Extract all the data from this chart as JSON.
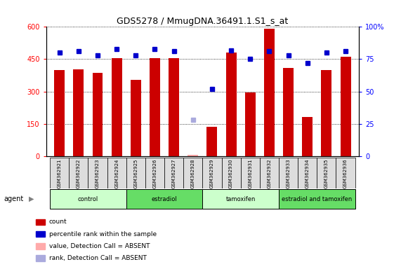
{
  "title": "GDS5278 / MmugDNA.36491.1.S1_s_at",
  "samples": [
    "GSM362921",
    "GSM362922",
    "GSM362923",
    "GSM362924",
    "GSM362925",
    "GSM362926",
    "GSM362927",
    "GSM362928",
    "GSM362929",
    "GSM362930",
    "GSM362931",
    "GSM362932",
    "GSM362933",
    "GSM362934",
    "GSM362935",
    "GSM362936"
  ],
  "counts": [
    400,
    402,
    385,
    455,
    355,
    455,
    455,
    5,
    135,
    480,
    295,
    590,
    410,
    180,
    400,
    460
  ],
  "count_absent": [
    false,
    false,
    false,
    false,
    false,
    false,
    false,
    true,
    false,
    false,
    false,
    false,
    false,
    false,
    false,
    false
  ],
  "percentile_ranks": [
    80,
    81,
    78,
    83,
    78,
    83,
    81,
    28,
    52,
    82,
    75,
    81,
    78,
    72,
    80,
    81
  ],
  "rank_absent": [
    false,
    false,
    false,
    false,
    false,
    false,
    false,
    true,
    false,
    false,
    false,
    false,
    false,
    false,
    false,
    false
  ],
  "groups": [
    {
      "label": "control",
      "start": 0,
      "end": 4,
      "color": "#ccffcc"
    },
    {
      "label": "estradiol",
      "start": 4,
      "end": 8,
      "color": "#66dd66"
    },
    {
      "label": "tamoxifen",
      "start": 8,
      "end": 12,
      "color": "#ccffcc"
    },
    {
      "label": "estradiol and tamoxifen",
      "start": 12,
      "end": 16,
      "color": "#66dd66"
    }
  ],
  "ylim_left": [
    0,
    600
  ],
  "ylim_right": [
    0,
    100
  ],
  "yticks_left": [
    0,
    150,
    300,
    450,
    600
  ],
  "yticks_right": [
    0,
    25,
    50,
    75,
    100
  ],
  "bar_color": "#cc0000",
  "bar_absent_color": "#ffaaaa",
  "rank_color": "#0000cc",
  "rank_absent_color": "#aaaadd",
  "bar_width": 0.55,
  "agent_label": "agent"
}
